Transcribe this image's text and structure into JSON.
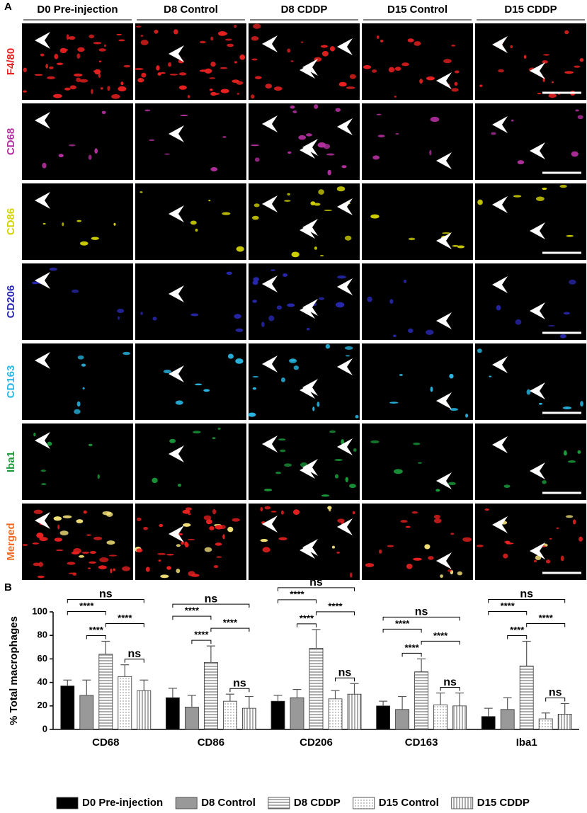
{
  "panel_labels": [
    "A",
    "B"
  ],
  "panel_a": {
    "columns": [
      "D0 Pre-injection",
      "D8 Control",
      "D8 CDDP",
      "D15 Control",
      "D15 CDDP"
    ],
    "rows": [
      {
        "label": "F4/80",
        "color": "#e82020"
      },
      {
        "label": "CD68",
        "color": "#b4309f"
      },
      {
        "label": "CD86",
        "color": "#d4d400"
      },
      {
        "label": "CD206",
        "color": "#2828b0"
      },
      {
        "label": "CD163",
        "color": "#28b8e4"
      },
      {
        "label": "Iba1",
        "color": "#1a9a3a"
      },
      {
        "label": "Merged",
        "color": "#f26a22"
      }
    ]
  },
  "chart_data": {
    "type": "bar",
    "ylabel": "% Total macrophages",
    "categories": [
      "CD68",
      "CD86",
      "CD206",
      "CD163",
      "Iba1"
    ],
    "series": [
      {
        "name": "D0 Pre-injection",
        "color": "#000000",
        "pattern": "solid",
        "values": [
          37,
          27,
          24,
          20,
          11
        ],
        "errors": [
          5,
          8,
          5,
          4,
          7
        ]
      },
      {
        "name": "D8 Control",
        "color": "#999999",
        "pattern": "solid",
        "values": [
          29,
          19,
          27,
          17,
          17
        ],
        "errors": [
          13,
          10,
          7,
          11,
          10
        ]
      },
      {
        "name": "D8 CDDP",
        "color": "#777777",
        "pattern": "horizontal",
        "values": [
          64,
          57,
          69,
          49,
          54
        ],
        "errors": [
          11,
          14,
          16,
          11,
          21
        ]
      },
      {
        "name": "D15 Control",
        "color": "#777777",
        "pattern": "dots",
        "values": [
          45,
          24,
          26,
          21,
          9
        ],
        "errors": [
          10,
          6,
          7,
          10,
          5
        ]
      },
      {
        "name": "D15 CDDP",
        "color": "#777777",
        "pattern": "vertical",
        "values": [
          33,
          18,
          30,
          20,
          13
        ],
        "errors": [
          9,
          10,
          9,
          11,
          9
        ]
      }
    ],
    "ylim": [
      0,
      100
    ],
    "yticks": [
      0,
      20,
      40,
      60,
      80,
      100
    ],
    "significance": [
      {
        "group": 0,
        "from": 3,
        "to": 4,
        "label": "ns"
      },
      {
        "group": 0,
        "from": 1,
        "to": 2,
        "label": "****"
      },
      {
        "group": 0,
        "from": 2,
        "to": 4,
        "label": "****"
      },
      {
        "group": 0,
        "from": 0,
        "to": 2,
        "label": "****"
      },
      {
        "group": 0,
        "from": 0,
        "to": 4,
        "label": "ns"
      },
      {
        "group": 1,
        "from": 3,
        "to": 4,
        "label": "ns"
      },
      {
        "group": 1,
        "from": 1,
        "to": 2,
        "label": "****"
      },
      {
        "group": 1,
        "from": 2,
        "to": 4,
        "label": "****"
      },
      {
        "group": 1,
        "from": 0,
        "to": 2,
        "label": "****"
      },
      {
        "group": 1,
        "from": 0,
        "to": 4,
        "label": "ns"
      },
      {
        "group": 2,
        "from": 3,
        "to": 4,
        "label": "ns"
      },
      {
        "group": 2,
        "from": 1,
        "to": 2,
        "label": "****"
      },
      {
        "group": 2,
        "from": 2,
        "to": 4,
        "label": "****"
      },
      {
        "group": 2,
        "from": 0,
        "to": 2,
        "label": "****"
      },
      {
        "group": 2,
        "from": 0,
        "to": 4,
        "label": "ns"
      },
      {
        "group": 3,
        "from": 3,
        "to": 4,
        "label": "ns"
      },
      {
        "group": 3,
        "from": 1,
        "to": 2,
        "label": "****"
      },
      {
        "group": 3,
        "from": 2,
        "to": 4,
        "label": "****"
      },
      {
        "group": 3,
        "from": 0,
        "to": 2,
        "label": "****"
      },
      {
        "group": 3,
        "from": 0,
        "to": 4,
        "label": "ns"
      },
      {
        "group": 4,
        "from": 3,
        "to": 4,
        "label": "ns"
      },
      {
        "group": 4,
        "from": 1,
        "to": 2,
        "label": "****"
      },
      {
        "group": 4,
        "from": 2,
        "to": 4,
        "label": "****"
      },
      {
        "group": 4,
        "from": 0,
        "to": 2,
        "label": "****"
      },
      {
        "group": 4,
        "from": 0,
        "to": 4,
        "label": "ns"
      }
    ],
    "legend": "bottom"
  }
}
